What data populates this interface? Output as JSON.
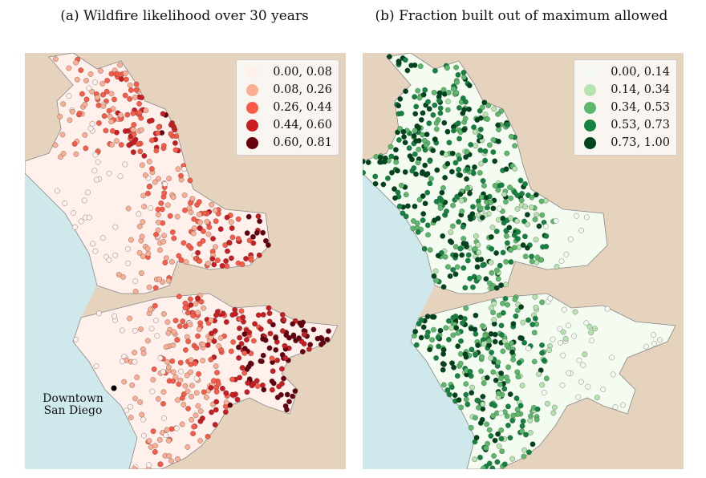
{
  "panels": [
    {
      "title": "(a) Wildfire likelihood over 30 years",
      "legend": [
        {
          "label": "0.00, 0.08",
          "color": "#fff0ec"
        },
        {
          "label": "0.08, 0.26",
          "color": "#fcae95"
        },
        {
          "label": "0.26, 0.44",
          "color": "#fb5a47"
        },
        {
          "label": "0.44, 0.60",
          "color": "#cb1c22"
        },
        {
          "label": "0.60, 0.81",
          "color": "#67000d"
        }
      ],
      "annotation": {
        "line1": "Downtown",
        "line2": "San Diego"
      }
    },
    {
      "title": "(b) Fraction built out of maximum allowed",
      "legend": [
        {
          "label": "0.00, 0.14",
          "color": "#f4fbf1"
        },
        {
          "label": "0.14, 0.34",
          "color": "#b7e3b1"
        },
        {
          "label": "0.34, 0.53",
          "color": "#5cb96b"
        },
        {
          "label": "0.53, 0.73",
          "color": "#12843f"
        },
        {
          "label": "0.73, 1.00",
          "color": "#00441b"
        }
      ]
    }
  ],
  "colors": {
    "land": "#e5d3bd",
    "ocean": "#cfe8ec"
  }
}
